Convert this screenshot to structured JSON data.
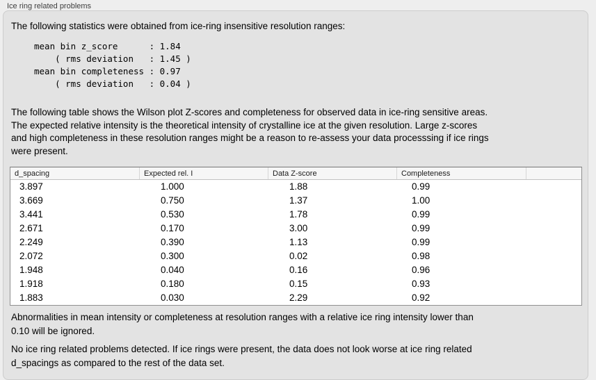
{
  "group": {
    "label": "Ice ring related problems"
  },
  "stats": {
    "intro": "The following statistics were obtained from ice-ring insensitive resolution ranges:",
    "block": "mean bin z_score      : 1.84\n    ( rms deviation   : 1.45 )\nmean bin completeness : 0.97\n    ( rms deviation   : 0.04 )"
  },
  "table_intro": "The following table shows the Wilson plot Z-scores and completeness for observed data in ice-ring sensitive areas.\nThe expected relative intensity is the theoretical intensity of crystalline ice at the given resolution. Large z-scores\nand high completeness in these resolution ranges might be a reason to re-assess your data processsing if ice rings\nwere present.",
  "table": {
    "columns": [
      "d_spacing",
      "Expected rel. I",
      "Data Z-score",
      "Completeness"
    ],
    "rows": [
      {
        "d_spacing": "3.897",
        "expected_rel_i": "1.000",
        "data_z_score": "1.88",
        "completeness": "0.99"
      },
      {
        "d_spacing": "3.669",
        "expected_rel_i": "0.750",
        "data_z_score": "1.37",
        "completeness": "1.00"
      },
      {
        "d_spacing": "3.441",
        "expected_rel_i": "0.530",
        "data_z_score": "1.78",
        "completeness": "0.99"
      },
      {
        "d_spacing": "2.671",
        "expected_rel_i": "0.170",
        "data_z_score": "3.00",
        "completeness": "0.99"
      },
      {
        "d_spacing": "2.249",
        "expected_rel_i": "0.390",
        "data_z_score": "1.13",
        "completeness": "0.99"
      },
      {
        "d_spacing": "2.072",
        "expected_rel_i": "0.300",
        "data_z_score": "0.02",
        "completeness": "0.98"
      },
      {
        "d_spacing": "1.948",
        "expected_rel_i": "0.040",
        "data_z_score": "0.16",
        "completeness": "0.96"
      },
      {
        "d_spacing": "1.918",
        "expected_rel_i": "0.180",
        "data_z_score": "0.15",
        "completeness": "0.93"
      },
      {
        "d_spacing": "1.883",
        "expected_rel_i": "0.030",
        "data_z_score": "2.29",
        "completeness": "0.92"
      }
    ]
  },
  "notes": {
    "ignore": "Abnormalities in mean intensity or completeness at resolution ranges with a relative ice ring intensity lower than\n0.10 will be ignored.",
    "conclusion": "No ice ring related problems detected. If ice rings were present, the data does not look worse at ice ring related\nd_spacings as compared to the rest of the data set."
  }
}
